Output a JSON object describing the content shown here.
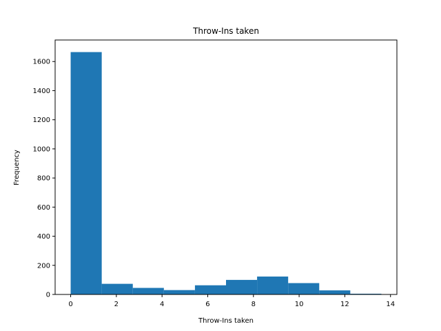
{
  "chart_data": {
    "type": "bar",
    "histogram": true,
    "title": "Throw-Ins taken",
    "xlabel": "Throw-Ins taken",
    "ylabel": "Frequency",
    "bin_edges": [
      0,
      1.36,
      2.72,
      4.08,
      5.44,
      6.8,
      8.16,
      9.52,
      10.88,
      12.24,
      13.6
    ],
    "values": [
      1665,
      73,
      45,
      30,
      63,
      100,
      123,
      78,
      28,
      5
    ],
    "xlim": [
      -0.68,
      14.28
    ],
    "ylim": [
      0,
      1748
    ],
    "xticks": [
      0,
      2,
      4,
      6,
      8,
      10,
      12,
      14
    ],
    "yticks": [
      0,
      200,
      400,
      600,
      800,
      1000,
      1200,
      1400,
      1600
    ],
    "grid": false,
    "colors": {
      "bar": "#1f77b4"
    }
  }
}
